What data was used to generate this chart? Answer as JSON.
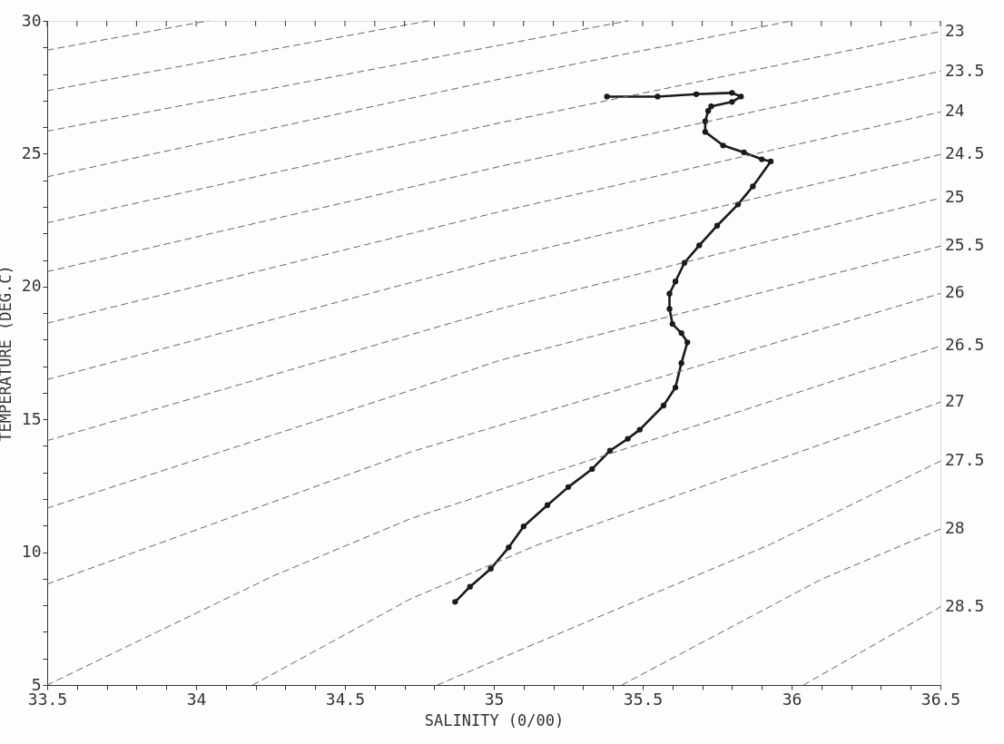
{
  "chart_data": {
    "type": "line",
    "xlabel": "SALINITY (0/00)",
    "ylabel": "TEMPERATURE (DEG.C)",
    "xlim": [
      33.5,
      36.5
    ],
    "ylim": [
      5,
      30
    ],
    "xticks": [
      33.5,
      {
        "value": 33.6,
        "label": null
      },
      {
        "value": 33.7,
        "label": null
      },
      {
        "value": 33.8,
        "label": null
      },
      {
        "value": 33.9,
        "label": null
      },
      34,
      {
        "value": 34.1,
        "label": null
      },
      {
        "value": 34.2,
        "label": null
      },
      {
        "value": 34.3,
        "label": null
      },
      {
        "value": 34.4,
        "label": null
      },
      34.5,
      {
        "value": 34.6,
        "label": null
      },
      {
        "value": 34.7,
        "label": null
      },
      {
        "value": 34.8,
        "label": null
      },
      {
        "value": 34.9,
        "label": null
      },
      35,
      {
        "value": 35.1,
        "label": null
      },
      {
        "value": 35.2,
        "label": null
      },
      {
        "value": 35.3,
        "label": null
      },
      {
        "value": 35.4,
        "label": null
      },
      35.5,
      {
        "value": 35.6,
        "label": null
      },
      {
        "value": 35.7,
        "label": null
      },
      {
        "value": 35.8,
        "label": null
      },
      {
        "value": 35.9,
        "label": null
      },
      36,
      {
        "value": 36.1,
        "label": null
      },
      {
        "value": 36.2,
        "label": null
      },
      {
        "value": 36.3,
        "label": null
      },
      {
        "value": 36.4,
        "label": null
      },
      36.5
    ],
    "yticks": [
      5,
      {
        "value": 6,
        "label": null
      },
      {
        "value": 7,
        "label": null
      },
      {
        "value": 8,
        "label": null
      },
      {
        "value": 9,
        "label": null
      },
      10,
      {
        "value": 11,
        "label": null
      },
      {
        "value": 12,
        "label": null
      },
      {
        "value": 13,
        "label": null
      },
      {
        "value": 14,
        "label": null
      },
      15,
      {
        "value": 16,
        "label": null
      },
      {
        "value": 17,
        "label": null
      },
      {
        "value": 18,
        "label": null
      },
      {
        "value": 19,
        "label": null
      },
      20,
      {
        "value": 21,
        "label": null
      },
      {
        "value": 22,
        "label": null
      },
      {
        "value": 23,
        "label": null
      },
      {
        "value": 24,
        "label": null
      },
      25,
      {
        "value": 26,
        "label": null
      },
      {
        "value": 27,
        "label": null
      },
      {
        "value": 28,
        "label": null
      },
      {
        "value": 29,
        "label": null
      },
      30
    ],
    "grid": false,
    "series": [
      {
        "color": "#1a1a1a",
        "marker": "circle",
        "line_style": "solid",
        "x": [
          35.38,
          35.55,
          35.68,
          35.8,
          35.83,
          35.8,
          35.73,
          35.72,
          35.71,
          35.71,
          35.77,
          35.84,
          35.9,
          35.93,
          35.87,
          35.82,
          35.75,
          35.69,
          35.64,
          35.61,
          35.59,
          35.59,
          35.6,
          35.63,
          35.65,
          35.63,
          35.61,
          35.57,
          35.49,
          35.45,
          35.39,
          35.33,
          35.25,
          35.18,
          35.1,
          35.05,
          34.99,
          34.92,
          34.87
        ],
        "values": [
          27.15,
          27.15,
          27.24,
          27.29,
          27.15,
          26.95,
          26.78,
          26.61,
          26.22,
          25.82,
          25.31,
          25.05,
          24.79,
          24.71,
          23.77,
          23.09,
          22.29,
          21.55,
          20.89,
          20.19,
          19.73,
          19.16,
          18.59,
          18.25,
          17.9,
          17.12,
          16.2,
          15.52,
          14.61,
          14.27,
          13.82,
          13.13,
          12.45,
          11.77,
          10.97,
          10.18,
          9.38,
          8.7,
          8.13
        ]
      },
      {
        "color": "#666666",
        "marker": "none",
        "line_style": "dashed",
        "x": [
          33.5,
          34.04
        ],
        "values": [
          28.9,
          30
        ]
      },
      {
        "color": "#666666",
        "marker": "none",
        "line_style": "dashed",
        "x": [
          33.5,
          34.78
        ],
        "values": [
          27.37,
          30
        ]
      },
      {
        "color": "#666666",
        "marker": "none",
        "line_style": "dashed",
        "x": [
          33.5,
          35.45
        ],
        "values": [
          25.85,
          30
        ]
      },
      {
        "color": "#666666",
        "marker": "none",
        "line_style": "dashed",
        "x": [
          33.5,
          35.02,
          36.0
        ],
        "values": [
          24.13,
          27.81,
          30
        ]
      },
      {
        "name": "23",
        "color": "#666666",
        "marker": "none",
        "line_style": "dashed",
        "x": [
          33.5,
          35.02,
          36.5
        ],
        "values": [
          22.4,
          26.16,
          29.6
        ]
      },
      {
        "name": "23.5",
        "color": "#666666",
        "marker": "none",
        "line_style": "dashed",
        "x": [
          33.5,
          35.02,
          36.5
        ],
        "values": [
          20.56,
          24.52,
          28.1
        ]
      },
      {
        "name": "24",
        "color": "#666666",
        "marker": "none",
        "line_style": "dashed",
        "x": [
          33.5,
          35.02,
          36.5
        ],
        "values": [
          18.62,
          22.82,
          26.57
        ]
      },
      {
        "name": "24.5",
        "color": "#666666",
        "marker": "none",
        "line_style": "dashed",
        "x": [
          33.5,
          35.02,
          36.5
        ],
        "values": [
          16.5,
          21.04,
          24.97
        ]
      },
      {
        "name": "25",
        "color": "#666666",
        "marker": "none",
        "line_style": "dashed",
        "x": [
          33.5,
          35.02,
          36.5
        ],
        "values": [
          14.2,
          19.16,
          23.33
        ]
      },
      {
        "name": "25.5",
        "color": "#666666",
        "marker": "none",
        "line_style": "dashed",
        "x": [
          33.5,
          34.72,
          35.02,
          36.5
        ],
        "values": [
          11.66,
          16.09,
          17.22,
          21.52
        ]
      },
      {
        "name": "26",
        "color": "#666666",
        "marker": "none",
        "line_style": "dashed",
        "x": [
          33.5,
          34.72,
          36.5
        ],
        "values": [
          8.8,
          13.77,
          19.74
        ]
      },
      {
        "name": "26.5",
        "color": "#666666",
        "marker": "none",
        "line_style": "dashed",
        "x": [
          33.5,
          34.26,
          34.72,
          36.5
        ],
        "values": [
          5.0,
          9.11,
          11.26,
          17.76
        ]
      },
      {
        "name": "27",
        "color": "#666666",
        "marker": "none",
        "line_style": "dashed",
        "x": [
          34.19,
          34.72,
          35.15,
          36.5
        ],
        "values": [
          5,
          8.24,
          10.29,
          15.65
        ]
      },
      {
        "name": "27.5",
        "color": "#666666",
        "marker": "none",
        "line_style": "dashed",
        "x": [
          34.81,
          35.93,
          36.5
        ],
        "values": [
          5,
          10.3,
          13.43
        ]
      },
      {
        "name": "28",
        "color": "#666666",
        "marker": "none",
        "line_style": "dashed",
        "x": [
          35.43,
          36.1,
          36.5
        ],
        "values": [
          5,
          8.98,
          10.87
        ]
      },
      {
        "name": "28.5",
        "color": "#666666",
        "marker": "none",
        "line_style": "dashed",
        "x": [
          36.04,
          36.5
        ],
        "values": [
          5,
          7.94
        ]
      }
    ]
  }
}
